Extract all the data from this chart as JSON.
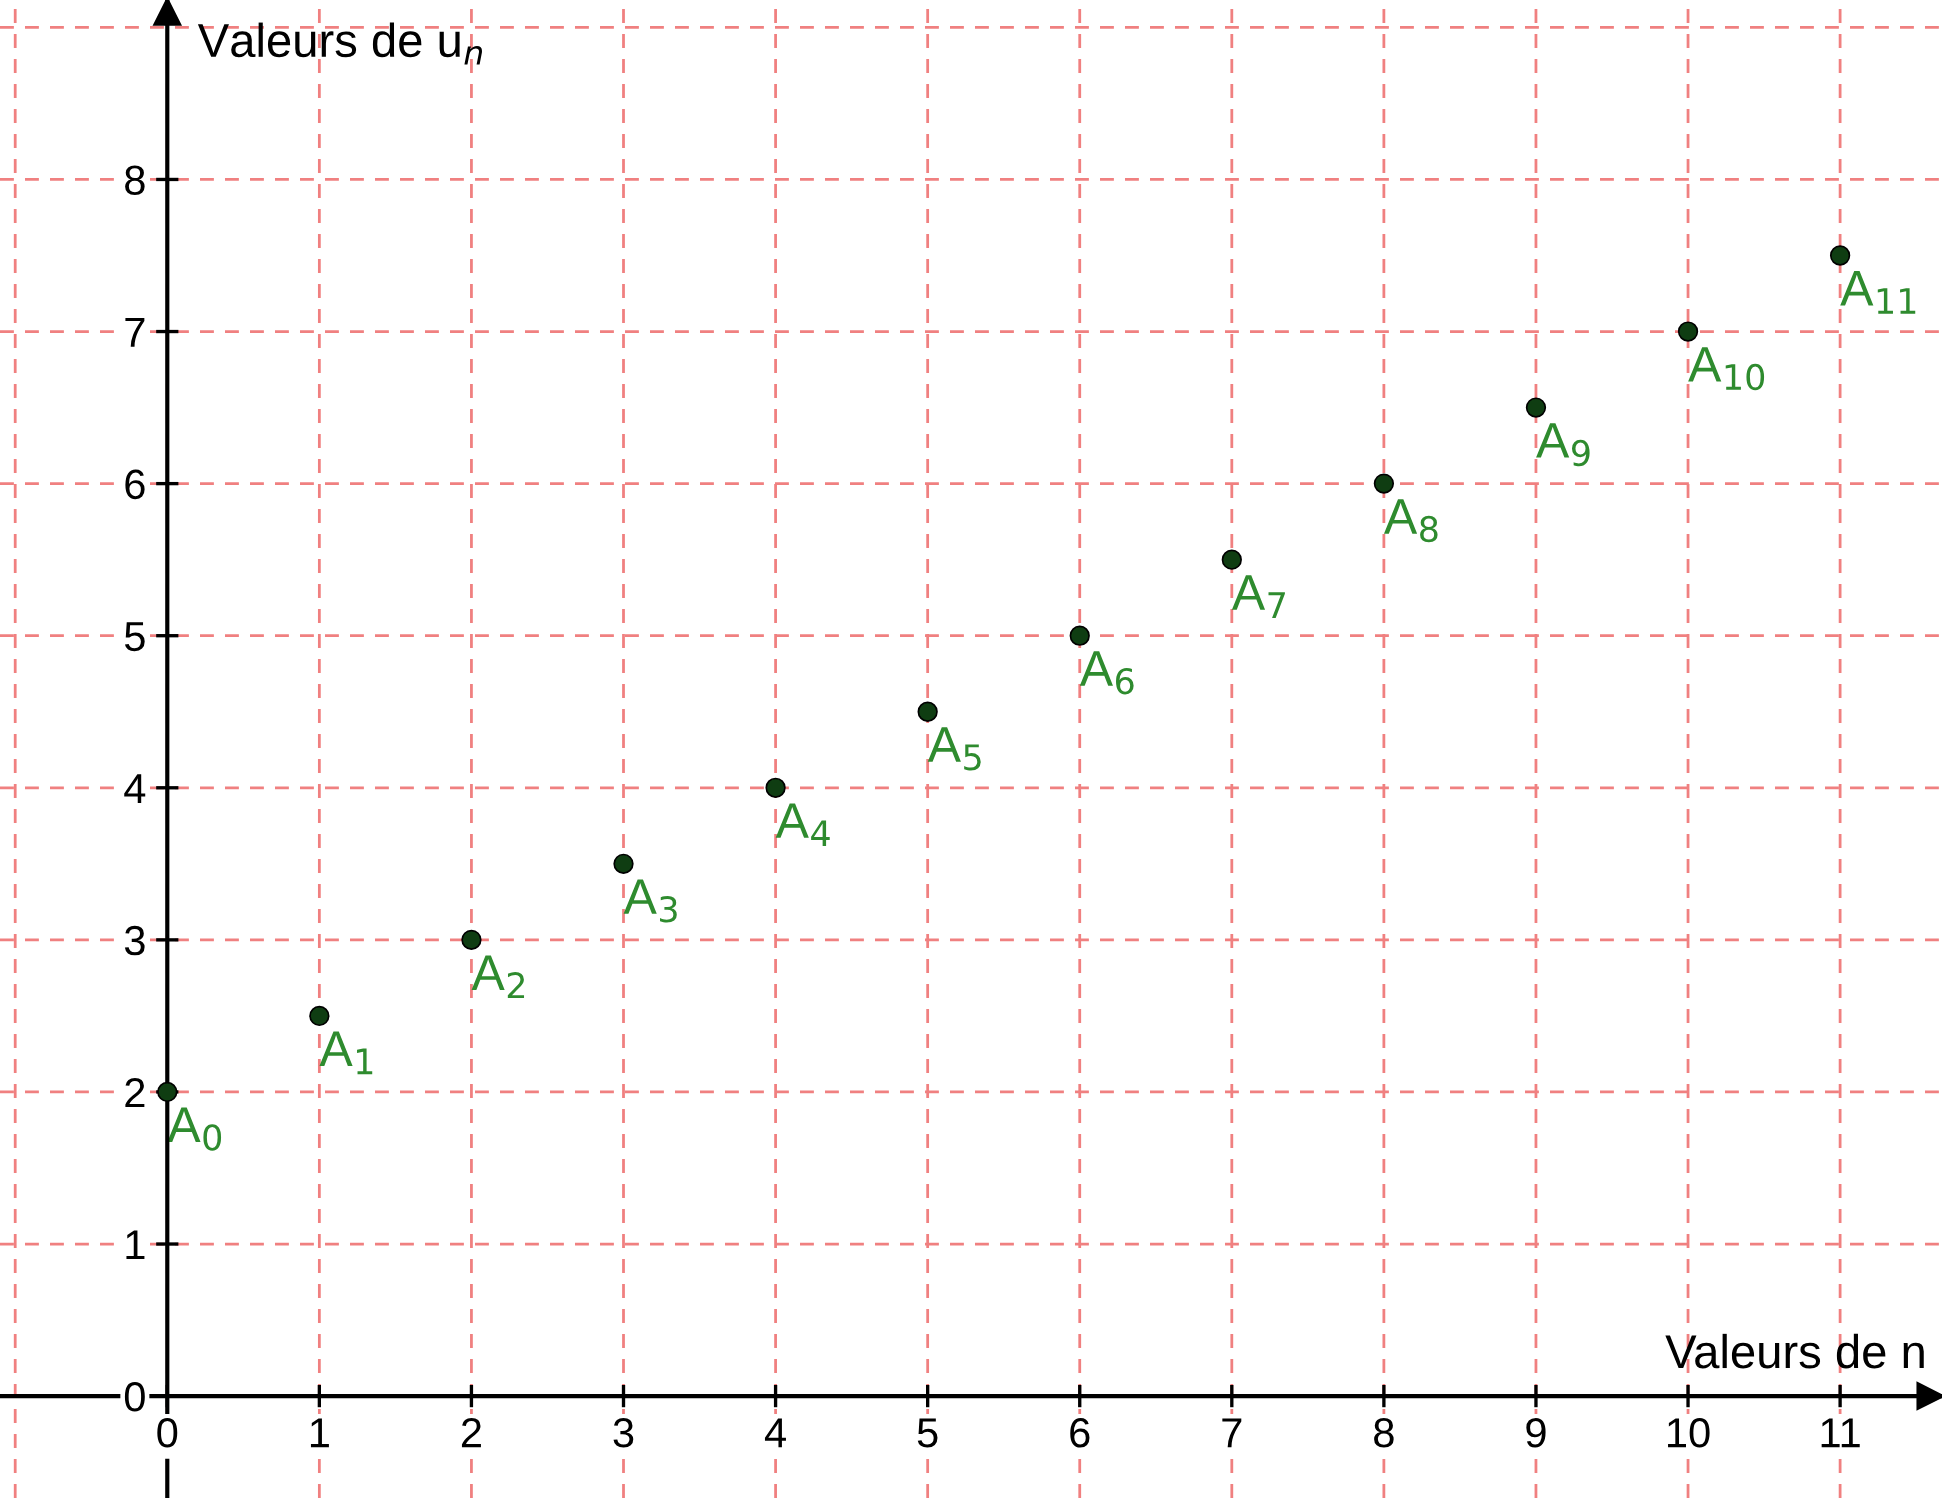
{
  "chart_data": {
    "type": "scatter",
    "xlabel": "Valeurs de n",
    "ylabel": "Valeurs de u$_{n}$",
    "x": [
      0,
      1,
      2,
      3,
      4,
      5,
      6,
      7,
      8,
      9,
      10,
      11
    ],
    "series": [
      {
        "color": "#0f3d12",
        "values": [
          2,
          2.5,
          3,
          3.5,
          4,
          4.5,
          5,
          5.5,
          6,
          6.5,
          7,
          7.5
        ]
      }
    ],
    "xlim": [
      -1.1,
      11.67
    ],
    "ylim": [
      -0.67,
      9.18
    ],
    "xticks": [
      0,
      1,
      2,
      3,
      4,
      5,
      6,
      7,
      8,
      9,
      10,
      11
    ],
    "yticks": [
      0,
      1,
      2,
      3,
      4,
      5,
      6,
      7,
      8
    ],
    "grid": true,
    "marker": "circle",
    "annotations": [
      {
        "text": "A$_{0}$",
        "x": 0,
        "y": 2
      },
      {
        "text": "A$_{1}$",
        "x": 1,
        "y": 2.5
      },
      {
        "text": "A$_{2}$",
        "x": 2,
        "y": 3
      },
      {
        "text": "A$_{3}$",
        "x": 3,
        "y": 3.5
      },
      {
        "text": "A$_{4}$",
        "x": 4,
        "y": 4
      },
      {
        "text": "A$_{5}$",
        "x": 5,
        "y": 4.5
      },
      {
        "text": "A$_{6}$",
        "x": 6,
        "y": 5
      },
      {
        "text": "A$_{7}$",
        "x": 7,
        "y": 5.5
      },
      {
        "text": "A$_{8}$",
        "x": 8,
        "y": 6
      },
      {
        "text": "A$_{9}$",
        "x": 9,
        "y": 6.5
      },
      {
        "text": "A$_{10}$",
        "x": 10,
        "y": 7
      },
      {
        "text": "A$_{11}$",
        "x": 11,
        "y": 7.5
      }
    ]
  }
}
